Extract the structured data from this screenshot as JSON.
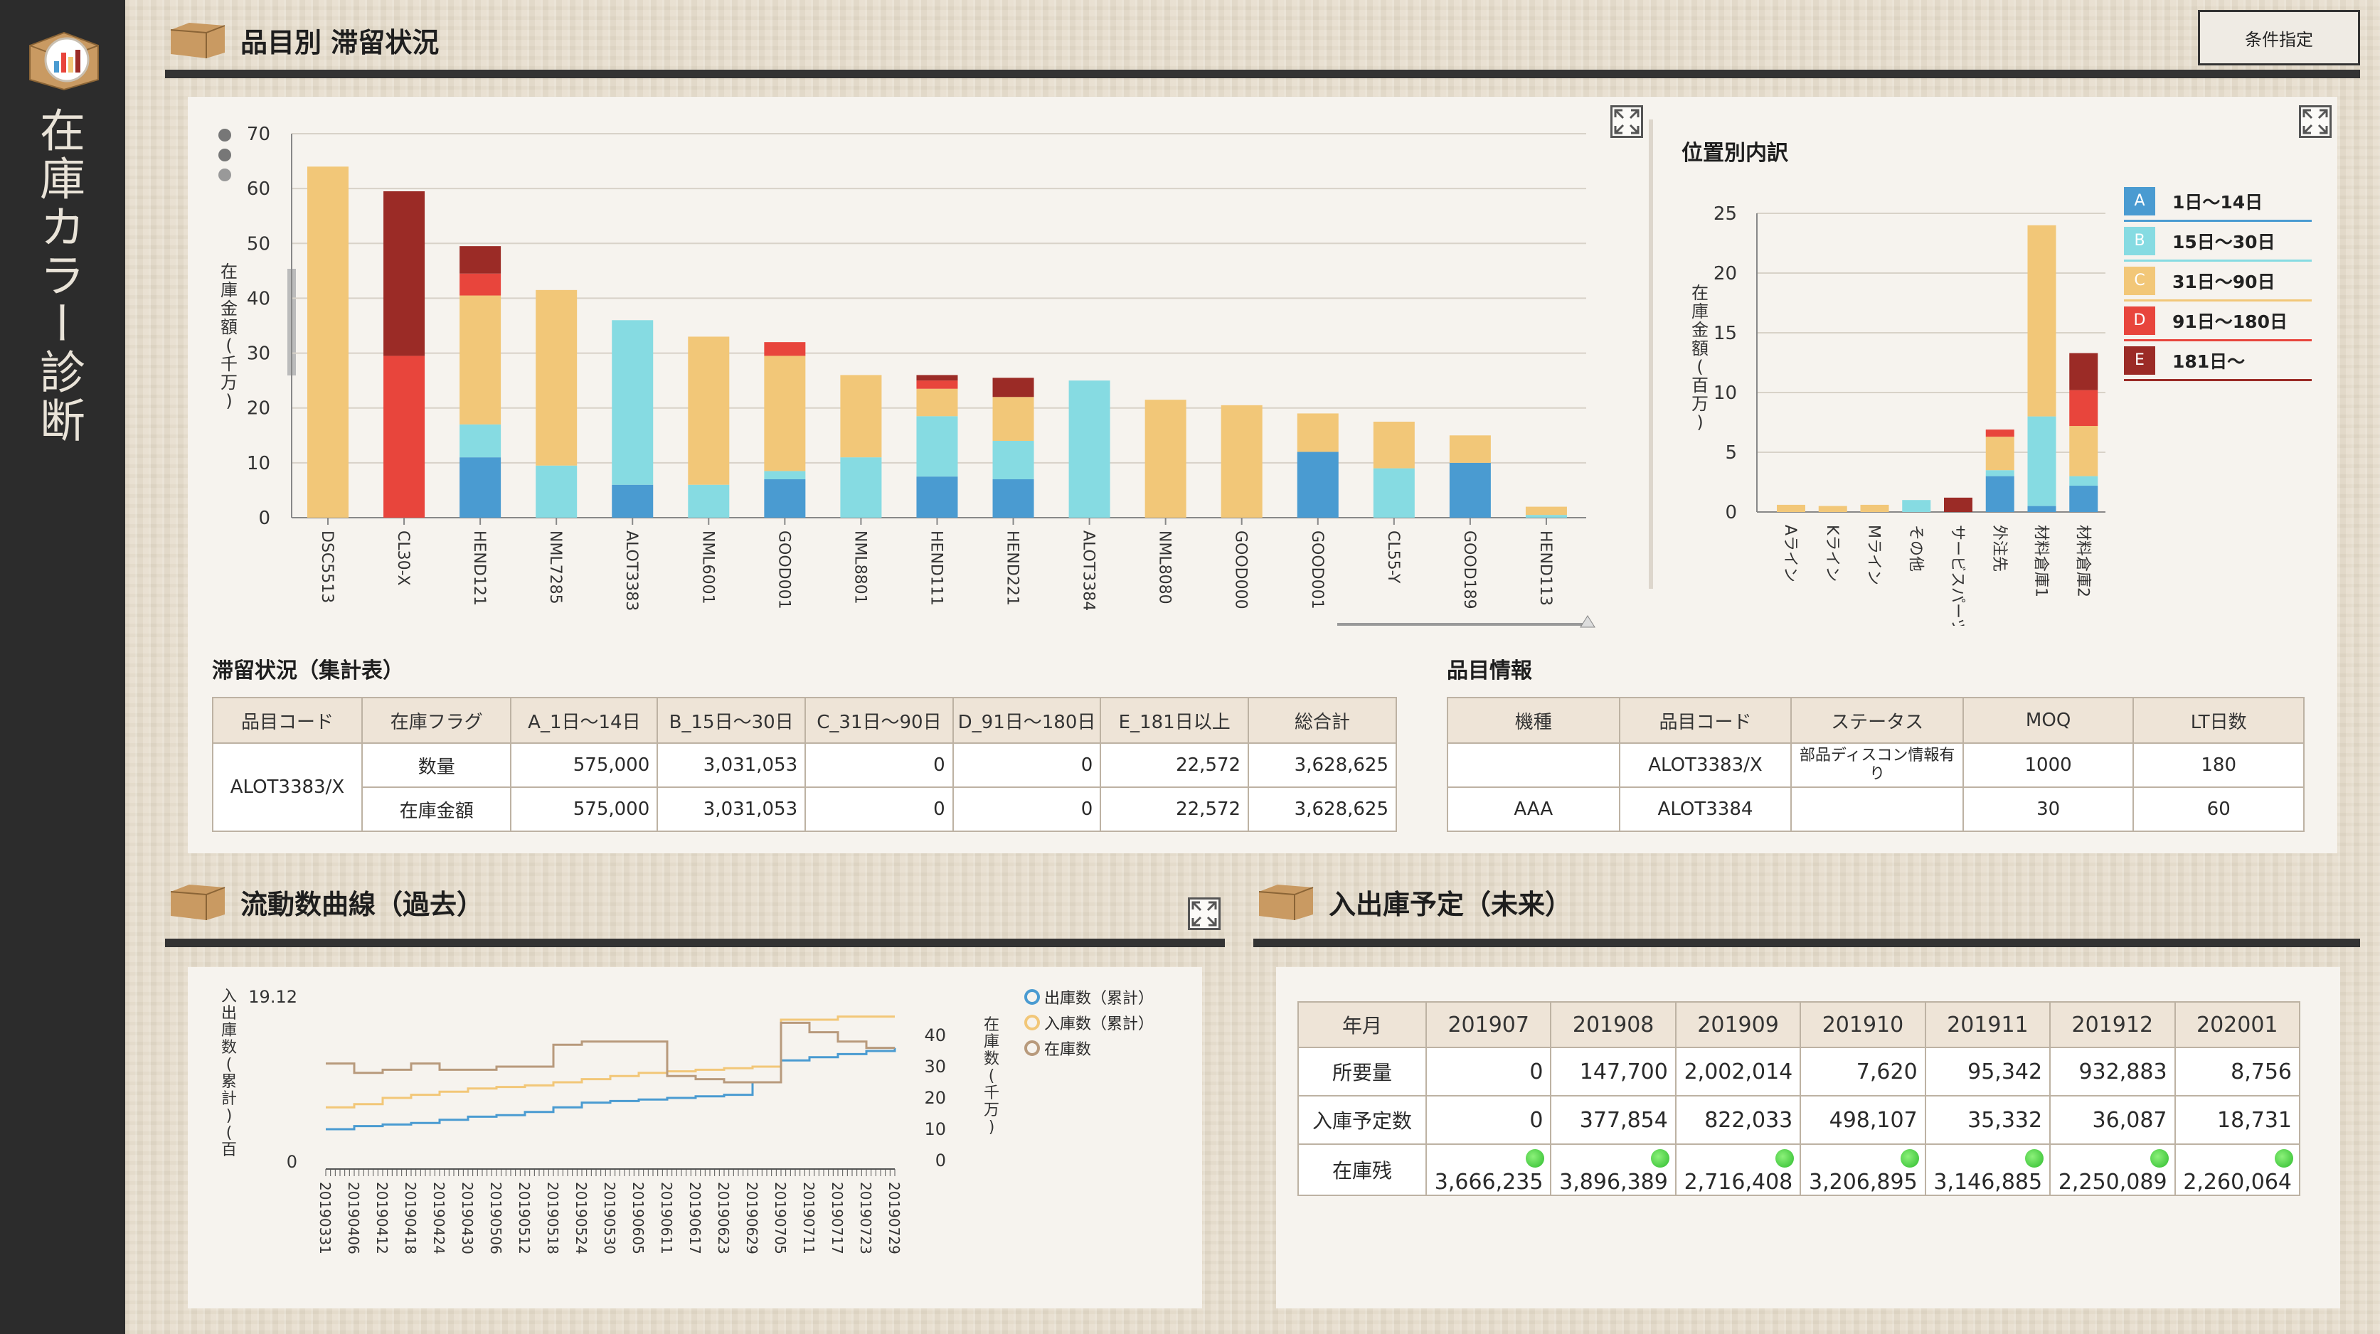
{
  "app": {
    "title": "在庫カラー診断"
  },
  "header": {
    "title": "品目別 滞留状況",
    "condition_button": "条件指定"
  },
  "main_chart": {
    "ylabel": "在庫金額(千万)",
    "chart_data": {
      "type": "bar",
      "stacked": true,
      "ylim": [
        0,
        70
      ],
      "yticks": [
        0,
        10,
        20,
        30,
        40,
        50,
        60,
        70
      ],
      "categories": [
        "DSC5513",
        "CL30-X",
        "HEND121",
        "NML7285",
        "ALOT3383",
        "NML6001",
        "GOOD001",
        "NML8801",
        "HEND111",
        "HEND221",
        "ALOT3384",
        "NML8080",
        "GOOD000",
        "GOOD001",
        "CL55-Y",
        "GOOD189",
        "HEND113"
      ],
      "series": [
        {
          "name": "A",
          "color": "#4a9bd1",
          "values": [
            0,
            0,
            11,
            0,
            6,
            0,
            7,
            0,
            7.5,
            7,
            0,
            0,
            0,
            12,
            0,
            10,
            0
          ]
        },
        {
          "name": "B",
          "color": "#86dbe2",
          "values": [
            0,
            0,
            6,
            9.5,
            30,
            6,
            1.5,
            11,
            11,
            7,
            25,
            0,
            0,
            0,
            9,
            0,
            0.5
          ]
        },
        {
          "name": "C",
          "color": "#f2c778",
          "values": [
            64,
            0,
            23.5,
            32,
            0,
            27,
            21,
            15,
            5,
            8,
            0,
            21.5,
            20.5,
            7,
            8.5,
            5,
            1.5
          ]
        },
        {
          "name": "D",
          "color": "#e8453c",
          "values": [
            0,
            29.5,
            4,
            0,
            0,
            0,
            2.5,
            0,
            1.5,
            0,
            0,
            0,
            0,
            0,
            0,
            0,
            0
          ]
        },
        {
          "name": "E",
          "color": "#9b2b26",
          "values": [
            0,
            30,
            5,
            0,
            0,
            0,
            0,
            0,
            1,
            3.5,
            0,
            0,
            0,
            0,
            0,
            0,
            0
          ]
        }
      ]
    }
  },
  "breakdown": {
    "title": "位置別内訳",
    "ylabel": "在庫金額(百万)",
    "legend": [
      {
        "code": "A",
        "label": "1日〜14日",
        "color": "#4a9bd1"
      },
      {
        "code": "B",
        "label": "15日〜30日",
        "color": "#86dbe2"
      },
      {
        "code": "C",
        "label": "31日〜90日",
        "color": "#f2c778"
      },
      {
        "code": "D",
        "label": "91日〜180日",
        "color": "#e8453c"
      },
      {
        "code": "E",
        "label": "181日〜",
        "color": "#9b2b26"
      }
    ],
    "chart_data": {
      "type": "bar",
      "stacked": true,
      "ylim": [
        0,
        25
      ],
      "yticks": [
        0,
        5,
        10,
        15,
        20,
        25
      ],
      "categories": [
        "Aライン",
        "Kライン",
        "Mライン",
        "その他",
        "サービスパーツ",
        "外注先",
        "材料倉庫1",
        "材料倉庫2"
      ],
      "series": [
        {
          "name": "A",
          "values": [
            0,
            0,
            0,
            0,
            0,
            3,
            0.5,
            2.2
          ]
        },
        {
          "name": "B",
          "values": [
            0,
            0,
            0,
            1,
            0,
            0.5,
            7.5,
            0.8
          ]
        },
        {
          "name": "C",
          "values": [
            0.6,
            0.5,
            0.6,
            0,
            0,
            2.8,
            16,
            4.2
          ]
        },
        {
          "name": "D",
          "values": [
            0,
            0,
            0,
            0,
            0,
            0.6,
            0,
            3
          ]
        },
        {
          "name": "E",
          "values": [
            0,
            0,
            0,
            0,
            1.2,
            0,
            0,
            3.1
          ]
        }
      ]
    }
  },
  "summary": {
    "title": "滞留状況（集計表）",
    "headers": [
      "品目コード",
      "在庫フラグ",
      "A_1日〜14日",
      "B_15日〜30日",
      "C_31日〜90日",
      "D_91日〜180日",
      "E_181日以上",
      "総合計"
    ],
    "item_code": "ALOT3383/X",
    "rows": [
      {
        "flag": "数量",
        "values": [
          "575,000",
          "3,031,053",
          "0",
          "0",
          "22,572",
          "3,628,625"
        ]
      },
      {
        "flag": "在庫金額",
        "values": [
          "575,000",
          "3,031,053",
          "0",
          "0",
          "22,572",
          "3,628,625"
        ]
      }
    ]
  },
  "item_info": {
    "title": "品目情報",
    "headers": [
      "機種",
      "品目コード",
      "ステータス",
      "MOQ",
      "LT日数"
    ],
    "rows": [
      {
        "model": "",
        "code": "ALOT3383/X",
        "status": "部品ディスコン情報有り",
        "moq": "1000",
        "lt": "180"
      },
      {
        "model": "AAA",
        "code": "ALOT3384",
        "status": "",
        "moq": "30",
        "lt": "60"
      }
    ]
  },
  "flow": {
    "title": "流動数曲線（過去）",
    "ylabel_left": "入出庫数(累計)(百",
    "ylabel_right": "在庫数(千万)",
    "ymax_label": "19.12",
    "ymin_label": "0",
    "legend": [
      {
        "label": "出庫数（累計）",
        "color": "#4a9bd1"
      },
      {
        "label": "入庫数（累計）",
        "color": "#f2c778"
      },
      {
        "label": "在庫数",
        "color": "#b89a7c"
      }
    ],
    "chart_data": {
      "type": "line",
      "right_yticks": [
        0,
        10,
        20,
        30,
        40
      ],
      "x_ticks": [
        "20190331",
        "20190406",
        "20190412",
        "20190418",
        "20190424",
        "20190430",
        "20190506",
        "20190512",
        "20190518",
        "20190524",
        "20190530",
        "20190605",
        "20190611",
        "20190617",
        "20190623",
        "20190629",
        "20190705",
        "20190711",
        "20190717",
        "20190723",
        "20190729"
      ],
      "series": [
        {
          "name": "出庫数（累計）",
          "values": [
            10,
            11,
            11.5,
            12,
            13,
            14,
            14.5,
            15.5,
            17,
            18.5,
            19,
            19.5,
            20,
            20.5,
            21,
            25,
            32,
            33,
            34,
            35,
            36
          ]
        },
        {
          "name": "入庫数（累計）",
          "values": [
            17,
            18,
            20,
            21,
            22,
            23,
            23.5,
            24,
            25,
            26,
            27,
            28,
            28.5,
            29,
            29.5,
            30,
            45,
            45,
            46,
            46,
            46
          ]
        },
        {
          "name": "在庫数",
          "values": [
            31,
            28,
            29,
            31,
            29,
            29,
            30,
            30,
            37,
            38,
            38,
            38,
            27,
            26,
            25,
            25,
            44,
            41,
            38,
            36,
            36
          ]
        }
      ]
    }
  },
  "future": {
    "title": "入出庫予定（未来）",
    "headers": [
      "年月",
      "201907",
      "201908",
      "201909",
      "201910",
      "201911",
      "201912",
      "202001"
    ],
    "rows": [
      {
        "label": "所要量",
        "values": [
          "0",
          "147,700",
          "2,002,014",
          "7,620",
          "95,342",
          "932,883",
          "8,756"
        ]
      },
      {
        "label": "入庫予定数",
        "values": [
          "0",
          "377,854",
          "822,033",
          "498,107",
          "35,332",
          "36,087",
          "18,731"
        ]
      },
      {
        "label": "在庫残",
        "values": [
          "3,666,235",
          "3,896,389",
          "2,716,408",
          "3,206,895",
          "3,146,885",
          "2,250,089",
          "2,260,064"
        ]
      }
    ]
  }
}
